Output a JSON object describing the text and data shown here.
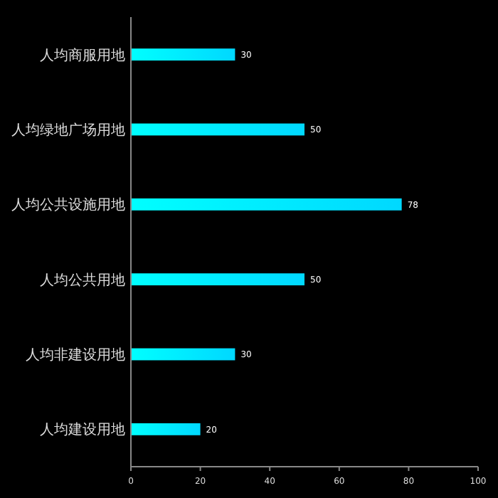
{
  "chart_data": {
    "type": "bar",
    "orientation": "horizontal",
    "categories": [
      "人均商服用地",
      "人均绿地广场用地",
      "人均公共设施用地",
      "人均公共用地",
      "人均非建设用地",
      "人均建设用地"
    ],
    "values": [
      30,
      50,
      78,
      50,
      30,
      20
    ],
    "color": "#00d8ff",
    "xlim": [
      0,
      100
    ],
    "xticks": [
      0,
      20,
      40,
      60,
      80,
      100
    ],
    "data_labels": true,
    "grid": false
  }
}
